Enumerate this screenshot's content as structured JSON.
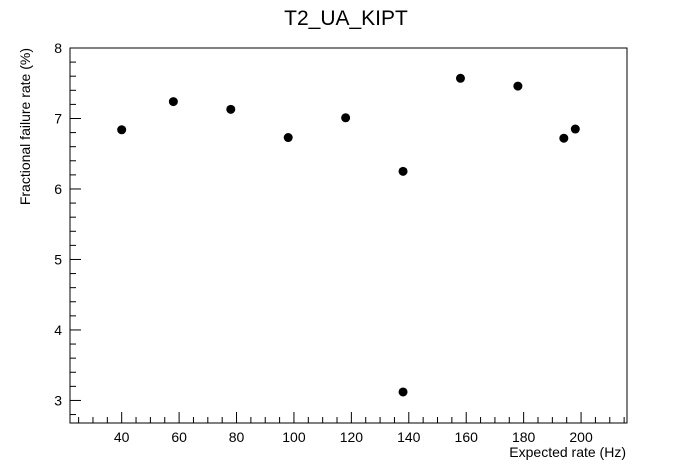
{
  "chart_data": {
    "type": "scatter",
    "title": "T2_UA_KIPT",
    "xlabel": "Expected rate (Hz)",
    "ylabel": "Fractional failure rate (%)",
    "xlim": [
      22,
      216
    ],
    "ylim": [
      2.68,
      8.0
    ],
    "x_major_ticks": [
      40,
      60,
      80,
      100,
      120,
      140,
      160,
      180,
      200
    ],
    "x_minor_step": 5,
    "y_major_ticks": [
      3,
      4,
      5,
      6,
      7,
      8
    ],
    "y_minor_step": 0.2,
    "grid": false,
    "legend": "none",
    "marker_color": "#000000",
    "points": [
      {
        "x": 40,
        "y": 6.84
      },
      {
        "x": 58,
        "y": 7.24
      },
      {
        "x": 78,
        "y": 7.13
      },
      {
        "x": 98,
        "y": 6.73
      },
      {
        "x": 118,
        "y": 7.01
      },
      {
        "x": 138,
        "y": 6.25
      },
      {
        "x": 138,
        "y": 3.12
      },
      {
        "x": 158,
        "y": 7.57
      },
      {
        "x": 178,
        "y": 7.46
      },
      {
        "x": 194,
        "y": 6.72
      },
      {
        "x": 198,
        "y": 6.85
      }
    ]
  }
}
